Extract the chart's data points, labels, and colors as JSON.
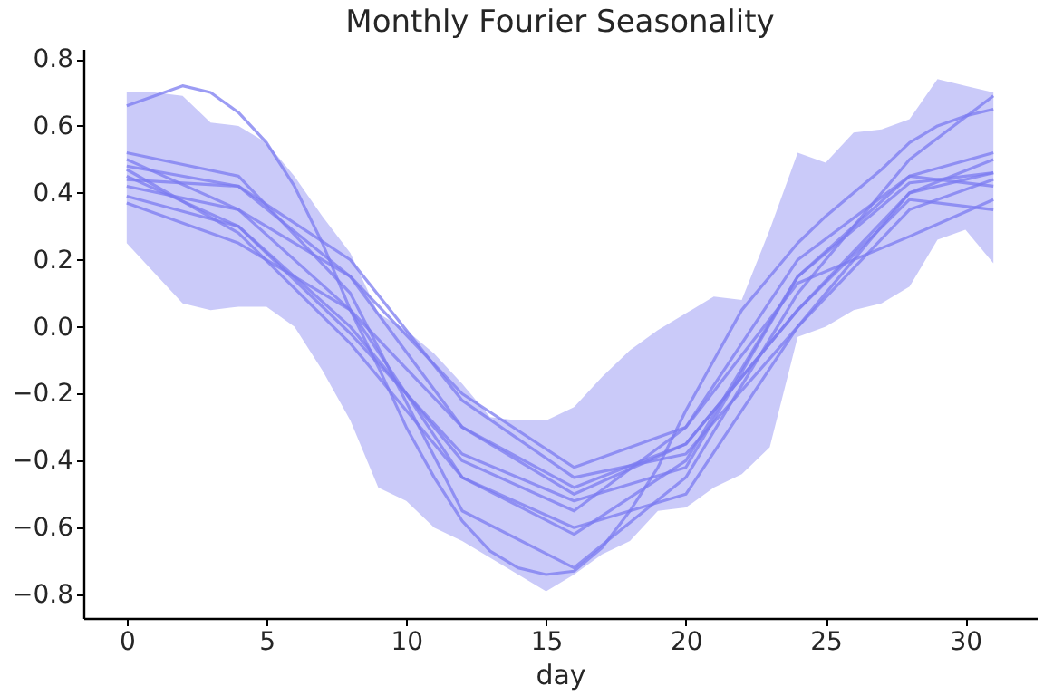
{
  "chart_data": {
    "type": "line",
    "title": "Monthly Fourier Seasonality",
    "xlabel": "day",
    "xlim": [
      -1.55,
      32.55
    ],
    "xticks": [
      0,
      5,
      10,
      15,
      20,
      25,
      30
    ],
    "ylim": [
      -0.87,
      0.83
    ],
    "yticks": [
      {
        "value": -0.8,
        "label": "−0.8"
      },
      {
        "value": -0.6,
        "label": "−0.6"
      },
      {
        "value": -0.4,
        "label": "−0.4"
      },
      {
        "value": -0.2,
        "label": "−0.2"
      },
      {
        "value": 0,
        "label": "0.0"
      },
      0.2,
      0.4,
      0.6,
      0.8
    ],
    "grid": false,
    "series": [
      {
        "color": "#7b7bf0",
        "x": [
          0,
          1,
          2,
          3,
          4,
          5,
          6,
          7,
          8,
          9,
          10,
          11,
          12,
          13,
          14,
          15,
          16,
          17,
          18,
          19,
          20,
          21,
          22,
          23,
          24,
          25,
          26,
          27,
          28,
          29,
          30,
          31
        ],
        "values": [
          0.66,
          0.69,
          0.72,
          0.7,
          0.64,
          0.55,
          0.42,
          0.25,
          0.05,
          -0.12,
          -0.3,
          -0.45,
          -0.58,
          -0.67,
          -0.72,
          -0.74,
          -0.73,
          -0.66,
          -0.55,
          -0.42,
          -0.25,
          -0.1,
          0.05,
          0.15,
          0.25,
          0.33,
          0.4,
          0.47,
          0.55,
          0.6,
          0.63,
          0.65
        ],
        "lower": [
          0.25,
          0.16,
          0.07,
          0.05,
          0.06,
          0.06,
          0.0,
          -0.13,
          -0.28,
          -0.48,
          -0.52,
          -0.6,
          -0.64,
          -0.69,
          -0.74,
          -0.79,
          -0.74,
          -0.68,
          -0.64,
          -0.55,
          -0.54,
          -0.48,
          -0.44,
          -0.36,
          -0.03,
          0.0,
          0.05,
          0.07,
          0.12,
          0.26,
          0.29,
          0.19
        ],
        "upper": [
          0.7,
          0.7,
          0.69,
          0.61,
          0.6,
          0.55,
          0.45,
          0.33,
          0.22,
          0.04,
          -0.01,
          -0.08,
          -0.17,
          -0.27,
          -0.28,
          -0.28,
          -0.24,
          -0.15,
          -0.07,
          -0.01,
          0.04,
          0.09,
          0.08,
          0.29,
          0.52,
          0.49,
          0.58,
          0.59,
          0.62,
          0.74,
          0.72,
          0.7
        ]
      },
      {
        "color": "#7b7bf0",
        "x": [
          0,
          4,
          8,
          12,
          16,
          20,
          24,
          28,
          31
        ],
        "values": [
          0.52,
          0.45,
          0.1,
          -0.55,
          -0.72,
          -0.45,
          0.1,
          0.5,
          0.69
        ]
      },
      {
        "color": "#7b7bf0",
        "x": [
          0,
          4,
          8,
          12,
          16,
          20,
          24,
          28,
          31
        ],
        "values": [
          0.5,
          0.35,
          0.05,
          -0.45,
          -0.62,
          -0.4,
          0.15,
          0.45,
          0.52
        ]
      },
      {
        "color": "#7b7bf0",
        "x": [
          0,
          4,
          8,
          12,
          16,
          20,
          24,
          28,
          31
        ],
        "values": [
          0.48,
          0.42,
          0.15,
          -0.3,
          -0.5,
          -0.35,
          0.05,
          0.4,
          0.46
        ]
      },
      {
        "color": "#7b7bf0",
        "x": [
          0,
          4,
          8,
          12,
          16,
          20,
          24,
          28,
          31
        ],
        "values": [
          0.44,
          0.42,
          0.2,
          -0.22,
          -0.45,
          -0.38,
          0.0,
          0.35,
          0.44
        ]
      },
      {
        "color": "#7b7bf0",
        "x": [
          0,
          4,
          8,
          12,
          16,
          20,
          24,
          28,
          31
        ],
        "values": [
          0.39,
          0.3,
          0.0,
          -0.4,
          -0.55,
          -0.3,
          0.2,
          0.45,
          0.42
        ]
      },
      {
        "color": "#7b7bf0",
        "x": [
          0,
          4,
          8,
          12,
          16,
          20,
          24,
          28,
          31
        ],
        "values": [
          0.37,
          0.25,
          0.05,
          -0.3,
          -0.48,
          -0.35,
          0.05,
          0.38,
          0.35
        ]
      },
      {
        "color": "#7b7bf0",
        "x": [
          0,
          4,
          8,
          12,
          16,
          20,
          24,
          28,
          31
        ],
        "values": [
          0.47,
          0.28,
          -0.05,
          -0.45,
          -0.6,
          -0.5,
          0.0,
          0.4,
          0.5
        ]
      },
      {
        "color": "#7b7bf0",
        "x": [
          0,
          4,
          8,
          12,
          16,
          20,
          24,
          28,
          31
        ],
        "values": [
          0.42,
          0.35,
          0.15,
          -0.2,
          -0.42,
          -0.3,
          0.13,
          0.27,
          0.38
        ]
      },
      {
        "color": "#7b7bf0",
        "x": [
          0,
          4,
          8,
          12,
          16,
          20,
          24,
          28,
          31
        ],
        "values": [
          0.45,
          0.3,
          -0.02,
          -0.38,
          -0.52,
          -0.42,
          0.15,
          0.43,
          0.46
        ]
      }
    ]
  }
}
